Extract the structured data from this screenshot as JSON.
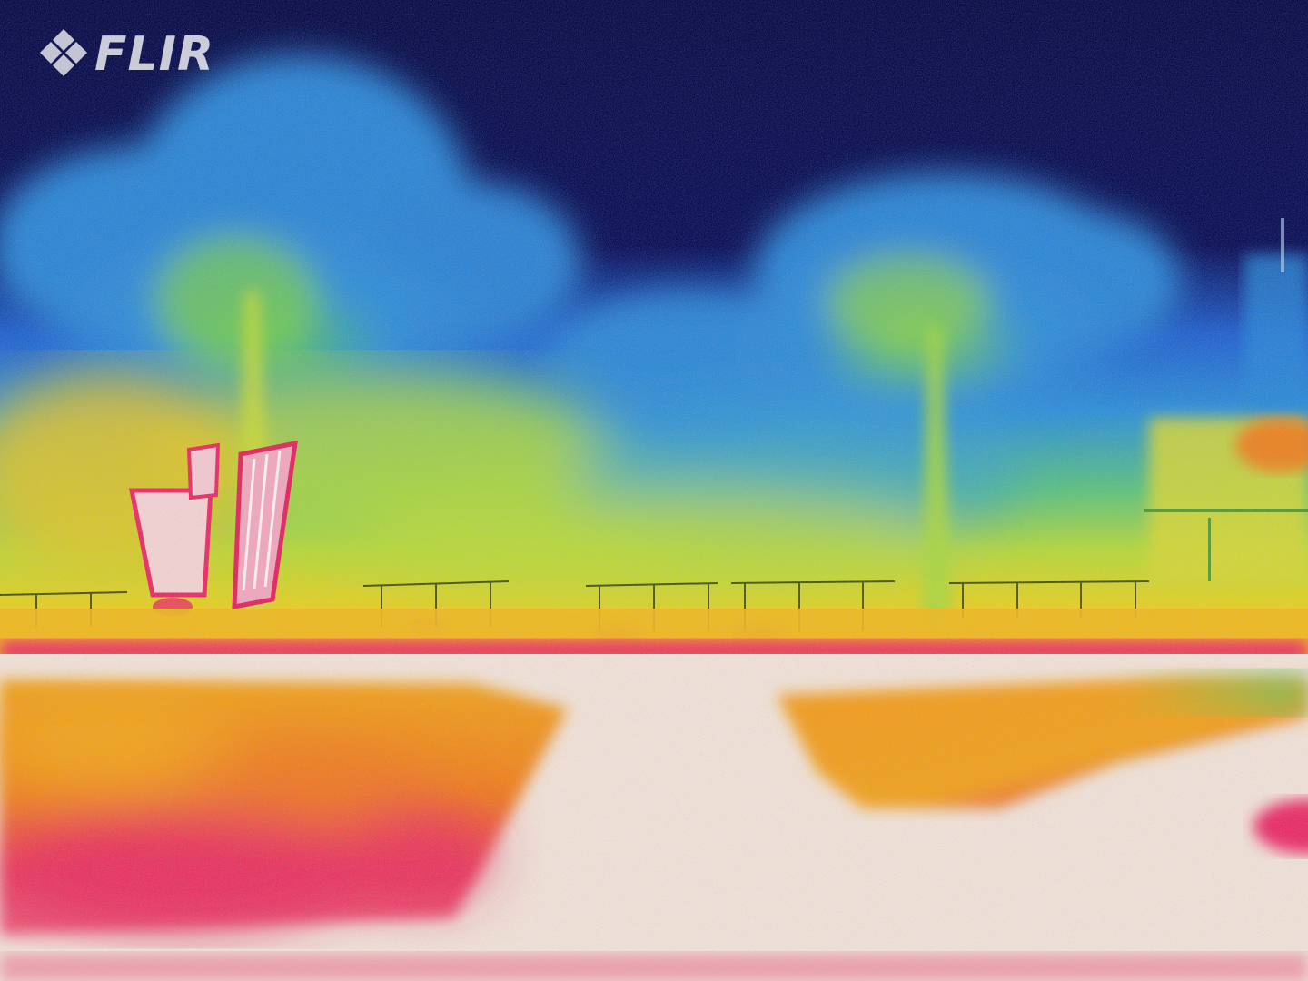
{
  "overlay": {
    "brand_label": "FLIR",
    "brand_icon": "flir-diamond-logo-icon"
  },
  "palette": {
    "sky": "#06094f",
    "cold_foliage": "#2a7fd9",
    "mid_foliage": "#7ad04a",
    "warm": "#f2c21f",
    "hot": "#f07a1a",
    "hotter": "#ea2a66",
    "hottest": "#f3e6dc"
  }
}
